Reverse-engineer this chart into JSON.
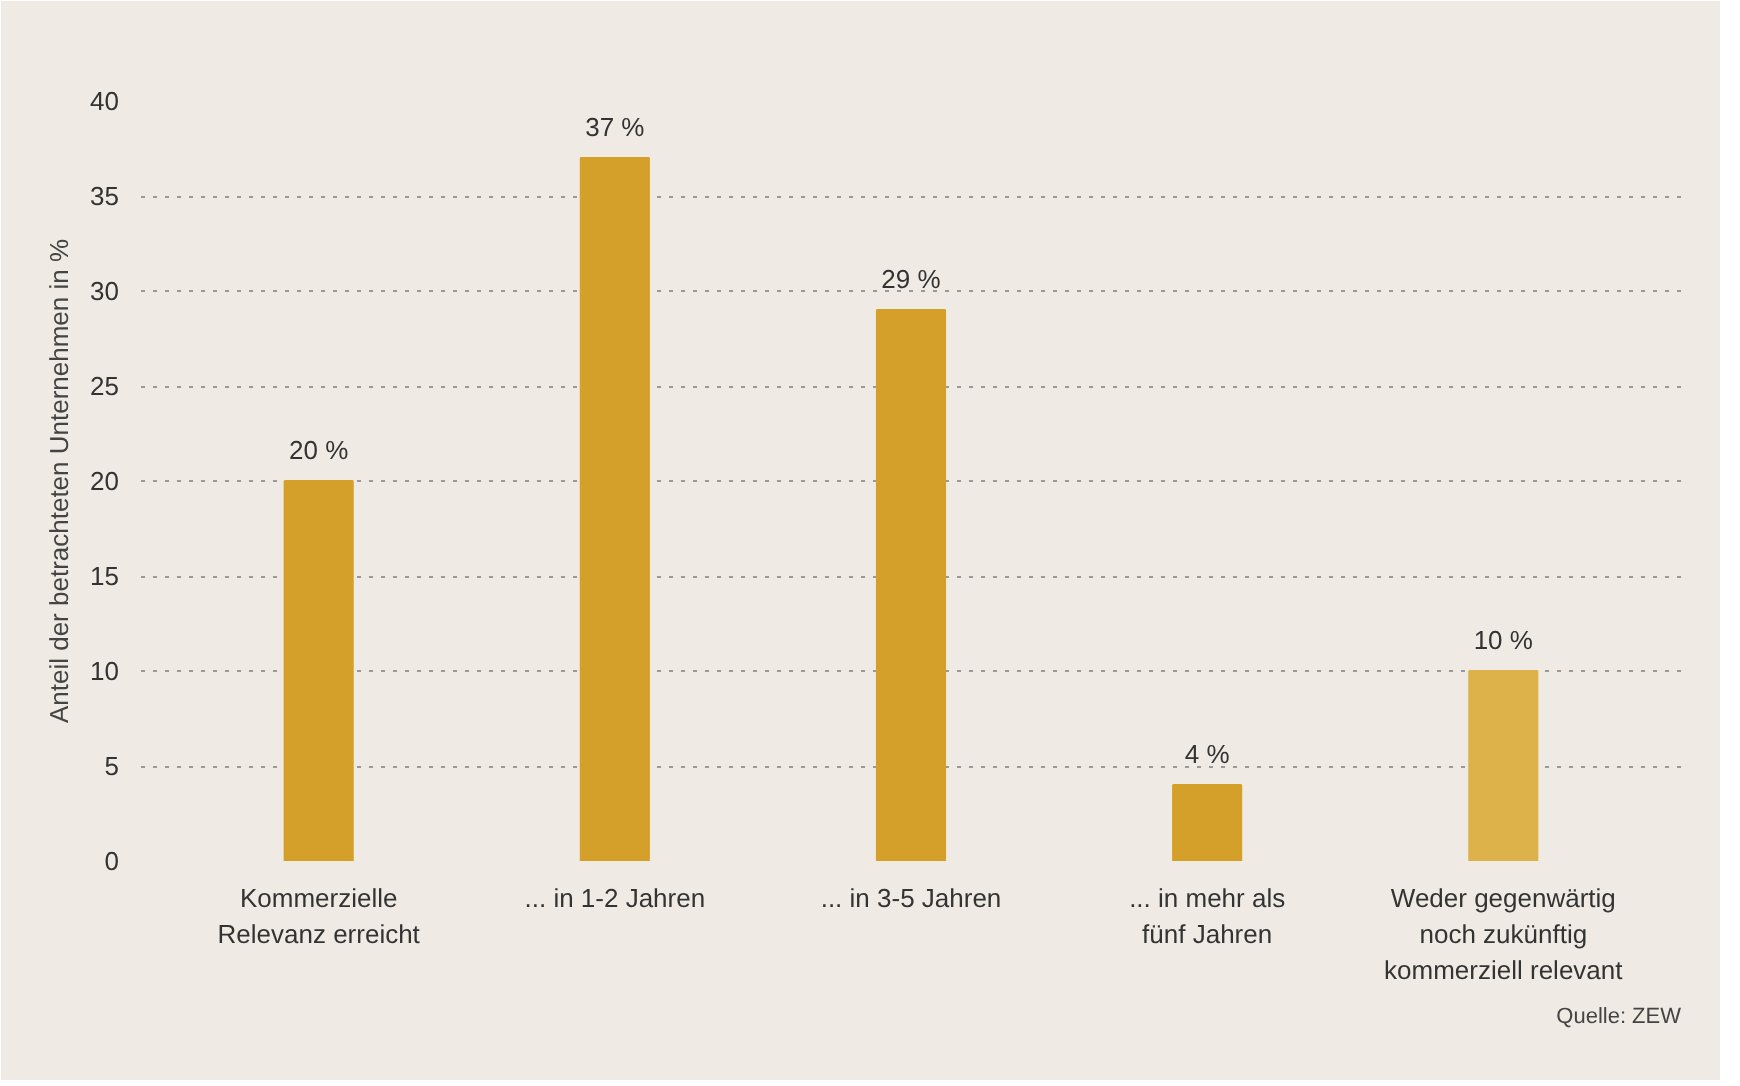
{
  "chart_data": {
    "type": "bar",
    "ylabel": "Anteil der betrachteten Unternehmen in %",
    "categories": [
      "Kommerzielle\nRelevanz erreicht",
      "... in 1-2 Jahren",
      "... in 3-5 Jahren",
      "... in mehr als\nfünf Jahren",
      "Weder gegenwärtig\nnoch zukünftig\nkommerziell relevant"
    ],
    "values": [
      20,
      37,
      29,
      4,
      10
    ],
    "value_labels": [
      "20 %",
      "37 %",
      "29 %",
      "4 %",
      "10 %"
    ],
    "colors": [
      "#d4a02a",
      "#d4a02a",
      "#d4a02a",
      "#d4a02a",
      "#ddb24a"
    ],
    "ylim": [
      0,
      40
    ],
    "yticks": [
      0,
      5,
      10,
      15,
      20,
      25,
      30,
      35,
      40
    ],
    "grid": "y",
    "annotations": [
      "Quelle: ZEW"
    ]
  }
}
